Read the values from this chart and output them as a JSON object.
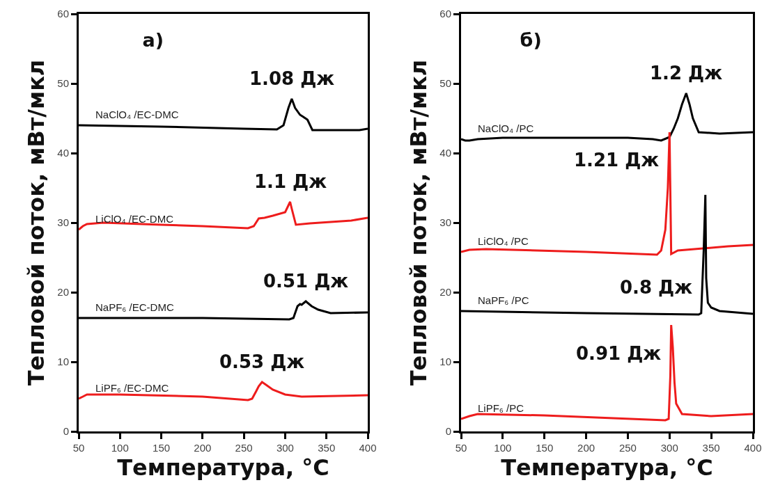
{
  "chart_data": [
    {
      "type": "line",
      "title": "а)",
      "xlabel": "Температура, °C",
      "ylabel": "Тепловой поток, мВт/мкл",
      "xlim": [
        50,
        400
      ],
      "ylim": [
        0,
        60
      ],
      "xticks": [
        50,
        100,
        150,
        200,
        250,
        300,
        350,
        400
      ],
      "yticks": [
        0,
        10,
        20,
        30,
        40,
        50,
        60
      ],
      "grid": false,
      "legend": false,
      "marker": "none",
      "line_style": "solid",
      "series": [
        {
          "name": "NaClO₄ /EC-DMC",
          "color": "#000000",
          "x": [
            50,
            150,
            250,
            290,
            298,
            304,
            308,
            312,
            318,
            322,
            327,
            333,
            360,
            390,
            400
          ],
          "values": [
            44,
            43.8,
            43.5,
            43.4,
            44,
            46.5,
            47.8,
            46.5,
            45.5,
            45.2,
            44.8,
            43.3,
            43.3,
            43.3,
            43.5
          ]
        },
        {
          "name": "LiClO₄ /EC-DMC",
          "color": "#ee1c1c",
          "x": [
            50,
            55,
            60,
            80,
            150,
            200,
            255,
            262,
            268,
            275,
            285,
            300,
            304,
            306,
            308,
            313,
            330,
            380,
            400
          ],
          "values": [
            29,
            29.5,
            29.8,
            30,
            29.7,
            29.5,
            29.2,
            29.5,
            30.6,
            30.7,
            31,
            31.5,
            32.5,
            33,
            32,
            29.7,
            29.9,
            30.3,
            30.7
          ]
        },
        {
          "name": "NaPF₆ /EC-DMC",
          "color": "#000000",
          "x": [
            50,
            200,
            305,
            310,
            315,
            318,
            320,
            325,
            332,
            340,
            355,
            400
          ],
          "values": [
            16.3,
            16.3,
            16.1,
            16.3,
            18,
            18.3,
            18.2,
            18.7,
            18,
            17.5,
            17,
            17.1
          ]
        },
        {
          "name": "LiPF₆ /EC-DMC",
          "color": "#ee1c1c",
          "x": [
            50,
            55,
            60,
            100,
            200,
            255,
            260,
            265,
            268,
            272,
            278,
            285,
            300,
            320,
            400
          ],
          "values": [
            4.7,
            5,
            5.3,
            5.3,
            5,
            4.5,
            4.7,
            5.8,
            6.5,
            7.1,
            6.6,
            6,
            5.3,
            5,
            5.2
          ]
        }
      ],
      "annotations": [
        {
          "text": "1.08 Дж",
          "x": 308,
          "y": 47.8
        },
        {
          "text": "1.1 Дж",
          "x": 306,
          "y": 33
        },
        {
          "text": "0.51 Дж",
          "x": 325,
          "y": 18.7
        },
        {
          "text": "0.53 Дж",
          "x": 272,
          "y": 7.1
        }
      ]
    },
    {
      "type": "line",
      "title": "б)",
      "xlabel": "Температура, °C",
      "ylabel": "Тепловой поток, мВт/мкл",
      "xlim": [
        50,
        400
      ],
      "ylim": [
        0,
        60
      ],
      "xticks": [
        50,
        100,
        150,
        200,
        250,
        300,
        350,
        400
      ],
      "yticks": [
        0,
        10,
        20,
        30,
        40,
        50,
        60
      ],
      "grid": false,
      "legend": false,
      "marker": "none",
      "line_style": "solid",
      "series": [
        {
          "name": "NaClO₄ /PC",
          "color": "#000000",
          "x": [
            50,
            55,
            60,
            65,
            70,
            100,
            250,
            280,
            290,
            300,
            305,
            310,
            315,
            320,
            324,
            328,
            335,
            360,
            400
          ],
          "values": [
            42,
            41.8,
            41.8,
            41.9,
            42,
            42.2,
            42.2,
            42,
            41.8,
            42.3,
            43.5,
            45,
            47,
            48.6,
            47,
            45,
            43,
            42.8,
            43
          ]
        },
        {
          "name": "LiClO₄ /PC",
          "color": "#ee1c1c",
          "x": [
            50,
            60,
            80,
            200,
            285,
            290,
            295,
            298,
            300,
            302,
            310,
            370,
            400
          ],
          "values": [
            25.8,
            26.1,
            26.2,
            25.8,
            25.4,
            26,
            29,
            35,
            43,
            25.5,
            26,
            26.6,
            26.8
          ]
        },
        {
          "name": "NaPF₆ /PC",
          "color": "#000000",
          "x": [
            50,
            200,
            335,
            338,
            341,
            343,
            344,
            346,
            350,
            360,
            400
          ],
          "values": [
            17.3,
            17,
            16.8,
            17,
            26,
            34,
            22,
            18.5,
            17.8,
            17.3,
            16.9
          ]
        },
        {
          "name": "LiPF₆ /PC",
          "color": "#ee1c1c",
          "x": [
            50,
            60,
            70,
            150,
            295,
            299,
            301,
            302,
            304,
            306,
            308,
            315,
            350,
            400
          ],
          "values": [
            1.8,
            2.2,
            2.5,
            2.3,
            1.6,
            1.8,
            8,
            15.3,
            12,
            7,
            4,
            2.5,
            2.2,
            2.5
          ]
        }
      ],
      "annotations": [
        {
          "text": "1.2 Дж",
          "x": 320,
          "y": 48.6
        },
        {
          "text": "1.21 Дж",
          "x": 299,
          "y": 39
        },
        {
          "text": "0.8 Дж",
          "x": 339.2,
          "y": 20.7
        },
        {
          "text": "0.91 Дж",
          "x": 301.4,
          "y": 11.2
        }
      ]
    }
  ]
}
